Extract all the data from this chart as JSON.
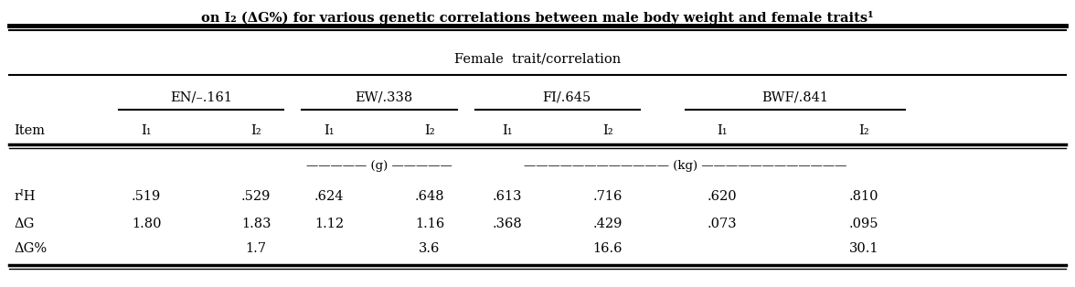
{
  "title_line": "on I₂ (ΔG%) for various genetic correlations between male body weight and female traits¹",
  "female_trait_label": "Female  trait/correlation",
  "col_groups": [
    {
      "label": "EN/–.161"
    },
    {
      "label": "EW/.338"
    },
    {
      "label": "FI/.645"
    },
    {
      "label": "BWF/.841"
    }
  ],
  "rows": [
    {
      "label": "rᴵH",
      "values": [
        ".519",
        ".529",
        ".624",
        ".648",
        ".613",
        ".716",
        ".620",
        ".810"
      ]
    },
    {
      "label": "ΔG",
      "values": [
        "1.80",
        "1.83",
        "1.12",
        "1.16",
        ".368",
        ".429",
        ".073",
        ".095"
      ]
    },
    {
      "label": "ΔG%",
      "values": [
        "",
        "1.7",
        "",
        "3.6",
        "",
        "16.6",
        "",
        "30.1"
      ]
    }
  ],
  "bg_color": "#ffffff",
  "text_color": "#000000",
  "line_color": "#000000",
  "font_size": 10.5
}
